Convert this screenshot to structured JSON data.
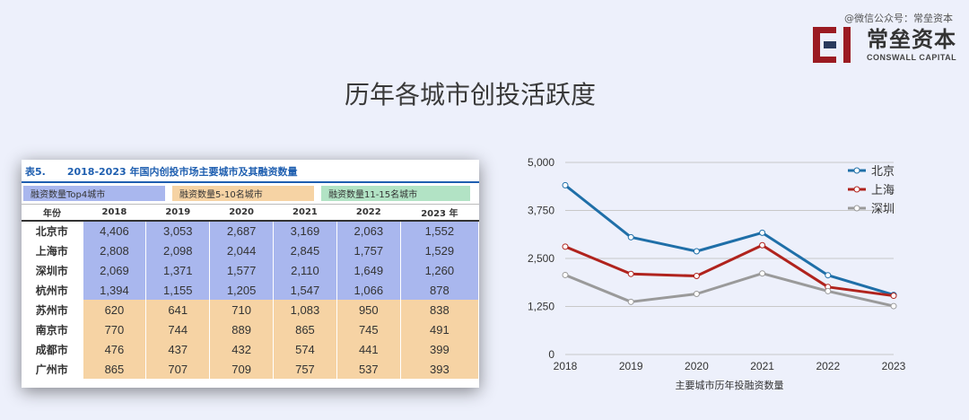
{
  "watermark": "@微信公众号：常垒资本",
  "logo": {
    "cn": "常垒资本",
    "en": "CONSWALL CAPITAL",
    "mark_color": "#9b1b22"
  },
  "title": "历年各城市创投活跃度",
  "table": {
    "number": "表5.",
    "caption": "2018-2023 年国内创投市场主要城市及其融资数量",
    "legend": [
      "融资数量Top4城市",
      "融资数量5-10名城市",
      "融资数量11-15名城市"
    ],
    "headers": [
      "年份",
      "2018",
      "2019",
      "2020",
      "2021",
      "2022",
      "2023 年"
    ],
    "rows": [
      {
        "city": "北京市",
        "group": "top4",
        "values": [
          "4,406",
          "3,053",
          "2,687",
          "3,169",
          "2,063",
          "1,552"
        ]
      },
      {
        "city": "上海市",
        "group": "top4",
        "values": [
          "2,808",
          "2,098",
          "2,044",
          "2,845",
          "1,757",
          "1,529"
        ]
      },
      {
        "city": "深圳市",
        "group": "top4",
        "values": [
          "2,069",
          "1,371",
          "1,577",
          "2,110",
          "1,649",
          "1,260"
        ]
      },
      {
        "city": "杭州市",
        "group": "top4",
        "values": [
          "1,394",
          "1,155",
          "1,205",
          "1,547",
          "1,066",
          "878"
        ]
      },
      {
        "city": "苏州市",
        "group": "mid",
        "values": [
          "620",
          "641",
          "710",
          "1,083",
          "950",
          "838"
        ]
      },
      {
        "city": "南京市",
        "group": "mid",
        "values": [
          "770",
          "744",
          "889",
          "865",
          "745",
          "491"
        ]
      },
      {
        "city": "成都市",
        "group": "mid",
        "values": [
          "476",
          "437",
          "432",
          "574",
          "441",
          "399"
        ]
      },
      {
        "city": "广州市",
        "group": "mid",
        "values": [
          "865",
          "707",
          "709",
          "757",
          "537",
          "393"
        ]
      }
    ]
  },
  "chart_data": {
    "type": "line",
    "x": [
      "2018",
      "2019",
      "2020",
      "2021",
      "2022",
      "2023"
    ],
    "series": [
      {
        "name": "北京",
        "color": "#1f6fa8",
        "values": [
          4406,
          3053,
          2687,
          3169,
          2063,
          1552
        ]
      },
      {
        "name": "上海",
        "color": "#b0231d",
        "values": [
          2808,
          2098,
          2044,
          2845,
          1757,
          1529
        ]
      },
      {
        "name": "深圳",
        "color": "#9a9a9a",
        "values": [
          2069,
          1371,
          1577,
          2110,
          1649,
          1260
        ]
      }
    ],
    "ylim": [
      0,
      5000
    ],
    "yticks": [
      0,
      1250,
      2500,
      3750,
      5000
    ],
    "ytick_labels": [
      "0",
      "1,250",
      "2,500",
      "3,750",
      "5,000"
    ],
    "xlabel": "主要城市历年投融资数量",
    "ylabel": "",
    "grid": true,
    "legend_position": "top-right"
  }
}
